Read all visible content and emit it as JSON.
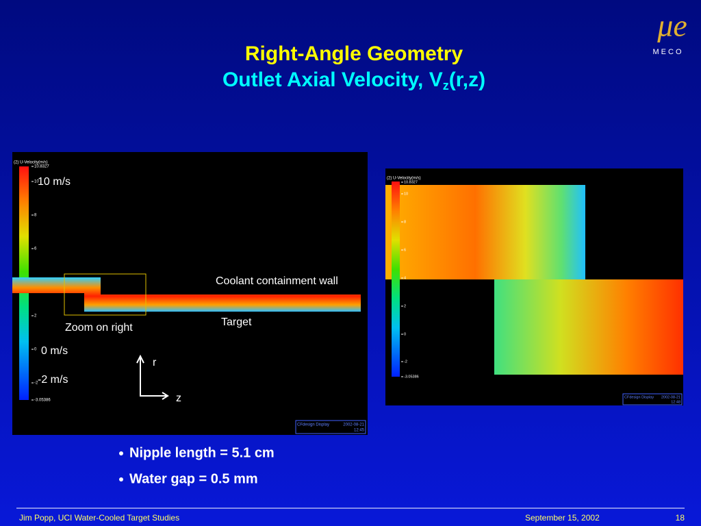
{
  "header": {
    "title": "Right-Angle Geometry",
    "subtitle": {
      "text": "Outlet Axial Velocity, V",
      "subscript": "z",
      "suffix": "(r,z)"
    }
  },
  "logo": {
    "symbol": "μe",
    "text": "MECO"
  },
  "left_panel": {
    "colorbar_title": "(2) U-Velocity(m/s)",
    "colorbar_labels": [
      "10.8327",
      "10",
      "8",
      "6",
      "4",
      "2",
      "0",
      "-2",
      "-3.05386"
    ],
    "annotations": [
      "10 m/s",
      "0 m/s",
      "-2 m/s",
      "Zoom on right",
      "Coolant containment wall",
      "Target",
      "r",
      "z"
    ],
    "display": {
      "name": "CFdesign Display",
      "date": "2002-08-21",
      "time": "12:45"
    }
  },
  "right_panel": {
    "colorbar_title": "(2) U-Velocity(m/s)",
    "colorbar_labels": [
      "10.8327",
      "10",
      "8",
      "6",
      "4",
      "2",
      "0",
      "-2",
      "-3.05386"
    ],
    "display": {
      "name": "CFdesign Display",
      "date": "2002-08-21",
      "time": "12:48"
    }
  },
  "bullets": [
    "Nipple length = 5.1 cm",
    "Water gap = 0.5 mm"
  ],
  "footer": {
    "author": "Jim Popp, UCI  Water-Cooled Target Studies",
    "date": "September 15, 2002",
    "page": "18"
  }
}
